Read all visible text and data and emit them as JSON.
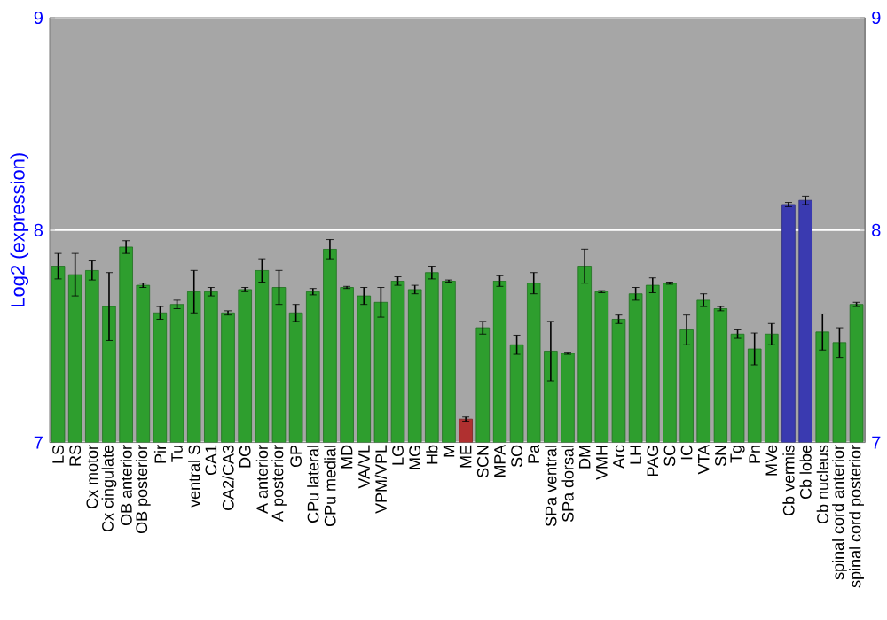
{
  "chart_data": {
    "type": "bar",
    "ylabel": "Log2 (expression)",
    "categories": [
      "LS",
      "RS",
      "Cx motor",
      "Cx cingulate",
      "OB anterior",
      "OB posterior",
      "Pir",
      "Tu",
      "ventral S",
      "CA1",
      "CA2/CA3",
      "DG",
      "A anterior",
      "A posterior",
      "GP",
      "CPu lateral",
      "CPu medial",
      "MD",
      "VA/VL",
      "VPM/VPL",
      "LG",
      "MG",
      "Hb",
      "M",
      "ME",
      "SCN",
      "MPA",
      "SO",
      "Pa",
      "SPa ventral",
      "SPa dorsal",
      "DM",
      "VMH",
      "Arc",
      "LH",
      "PAG",
      "SC",
      "IC",
      "VTA",
      "SN",
      "Tg",
      "Pn",
      "MVe",
      "Cb vermis",
      "Cb lobe",
      "Cb nucleus",
      "spinal cord anterior",
      "spinal cord posterior"
    ],
    "values": [
      7.83,
      7.79,
      7.81,
      7.64,
      7.92,
      7.74,
      7.61,
      7.65,
      7.71,
      7.71,
      7.61,
      7.72,
      7.81,
      7.73,
      7.61,
      7.71,
      7.91,
      7.73,
      7.69,
      7.66,
      7.76,
      7.72,
      7.8,
      7.76,
      7.11,
      7.54,
      7.76,
      7.46,
      7.75,
      7.43,
      7.42,
      7.83,
      7.71,
      7.58,
      7.7,
      7.74,
      7.75,
      7.53,
      7.67,
      7.63,
      7.51,
      7.44,
      7.51,
      8.12,
      8.14,
      7.52,
      7.47,
      7.65
    ],
    "errors": [
      0.06,
      0.1,
      0.045,
      0.16,
      0.03,
      0.01,
      0.03,
      0.02,
      0.1,
      0.02,
      0.01,
      0.01,
      0.055,
      0.08,
      0.04,
      0.015,
      0.045,
      0.005,
      0.04,
      0.07,
      0.02,
      0.02,
      0.03,
      0.005,
      0.01,
      0.03,
      0.025,
      0.045,
      0.05,
      0.14,
      0.005,
      0.08,
      0.005,
      0.02,
      0.03,
      0.035,
      0.005,
      0.07,
      0.03,
      0.01,
      0.02,
      0.075,
      0.05,
      0.01,
      0.02,
      0.085,
      0.07,
      0.01
    ],
    "colors": [
      "#2e9e2e",
      "#2e9e2e",
      "#2e9e2e",
      "#2e9e2e",
      "#2e9e2e",
      "#2e9e2e",
      "#2e9e2e",
      "#2e9e2e",
      "#2e9e2e",
      "#2e9e2e",
      "#2e9e2e",
      "#2e9e2e",
      "#2e9e2e",
      "#2e9e2e",
      "#2e9e2e",
      "#2e9e2e",
      "#2e9e2e",
      "#2e9e2e",
      "#2e9e2e",
      "#2e9e2e",
      "#2e9e2e",
      "#2e9e2e",
      "#2e9e2e",
      "#2e9e2e",
      "#b03030",
      "#2e9e2e",
      "#2e9e2e",
      "#2e9e2e",
      "#2e9e2e",
      "#2e9e2e",
      "#2e9e2e",
      "#2e9e2e",
      "#2e9e2e",
      "#2e9e2e",
      "#2e9e2e",
      "#2e9e2e",
      "#2e9e2e",
      "#2e9e2e",
      "#2e9e2e",
      "#2e9e2e",
      "#2e9e2e",
      "#2e9e2e",
      "#2e9e2e",
      "#3a3ab0",
      "#3a3ab0",
      "#2e9e2e",
      "#2e9e2e",
      "#2e9e2e"
    ],
    "ylim": [
      7,
      9
    ],
    "yticks": [
      7,
      8,
      9
    ],
    "y2lim": [
      7,
      9
    ],
    "y2ticks": [
      7,
      8,
      9
    ],
    "grid": "y"
  }
}
